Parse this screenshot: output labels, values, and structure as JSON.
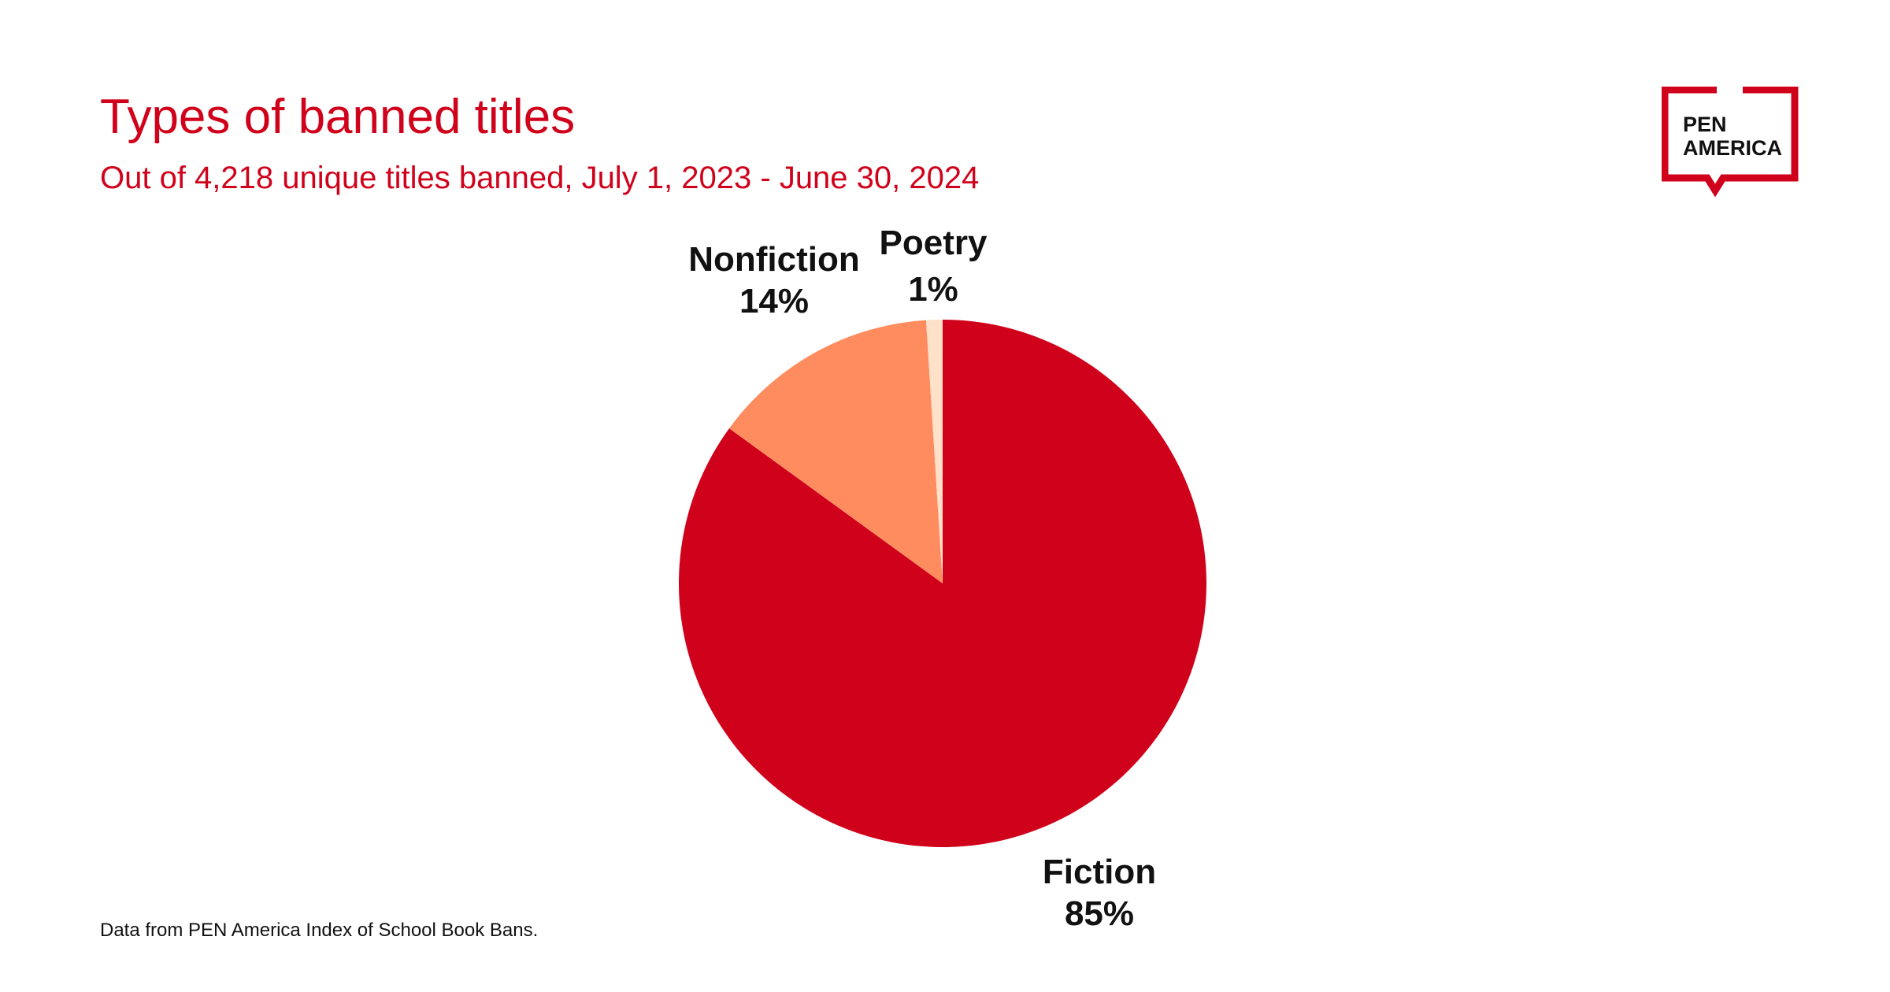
{
  "header": {
    "title": "Types of banned titles",
    "subtitle": "Out of 4,218 unique titles banned, July 1, 2023 - June 30, 2024"
  },
  "footer": {
    "source": "Data from PEN America Index of School Book Bans."
  },
  "logo": {
    "line1": "PEN",
    "line2": "AMERICA",
    "color": "#d0021b"
  },
  "chart_data": {
    "type": "pie",
    "title": "Types of banned titles",
    "subtitle": "Out of 4,218 unique titles banned, July 1, 2023 - June 30, 2024",
    "slices": [
      {
        "label": "Fiction",
        "value": 85,
        "value_label": "85%",
        "color": "#d0021b"
      },
      {
        "label": "Nonfiction",
        "value": 14,
        "value_label": "14%",
        "color": "#ff8c5e"
      },
      {
        "label": "Poetry",
        "value": 1,
        "value_label": "1%",
        "color": "#ffe0c8"
      }
    ],
    "start_angle_deg": 0,
    "direction": "clockwise"
  }
}
